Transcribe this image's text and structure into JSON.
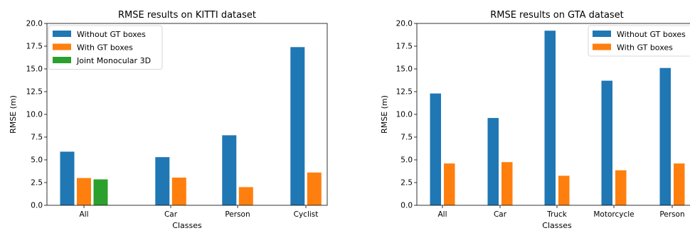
{
  "chart_data": [
    {
      "type": "bar",
      "title": "RMSE results on KITTI dataset",
      "xlabel": "Classes",
      "ylabel": "RMSE (m)",
      "ylim": [
        0,
        20
      ],
      "yticks": [
        "0.0",
        "2.5",
        "5.0",
        "7.5",
        "10.0",
        "12.5",
        "15.0",
        "17.5",
        "20.0"
      ],
      "categories": [
        "All",
        "Car",
        "Person",
        "Cyclist"
      ],
      "series": [
        {
          "name": "Without GT boxes",
          "color": "#1f77b4",
          "values": [
            5.9,
            5.3,
            7.7,
            17.4
          ]
        },
        {
          "name": "With GT boxes",
          "color": "#ff7f0e",
          "values": [
            3.0,
            3.05,
            2.0,
            3.6
          ]
        },
        {
          "name": "Joint Monocular 3D",
          "color": "#2ca02c",
          "values": [
            2.85,
            null,
            null,
            null
          ]
        }
      ],
      "legend_position": "top-left"
    },
    {
      "type": "bar",
      "title": "RMSE results on GTA dataset",
      "xlabel": "Classes",
      "ylabel": "RMSE (m)",
      "ylim": [
        0,
        20
      ],
      "yticks": [
        "0.0",
        "2.5",
        "5.0",
        "7.5",
        "10.0",
        "12.5",
        "15.0",
        "17.5",
        "20.0"
      ],
      "categories": [
        "All",
        "Car",
        "Truck",
        "Motorcycle",
        "Person"
      ],
      "series": [
        {
          "name": "Without GT boxes",
          "color": "#1f77b4",
          "values": [
            12.3,
            9.6,
            19.2,
            13.7,
            15.1
          ]
        },
        {
          "name": "With GT boxes",
          "color": "#ff7f0e",
          "values": [
            4.6,
            4.75,
            3.25,
            3.85,
            4.6
          ]
        }
      ],
      "legend_position": "top-right"
    }
  ]
}
